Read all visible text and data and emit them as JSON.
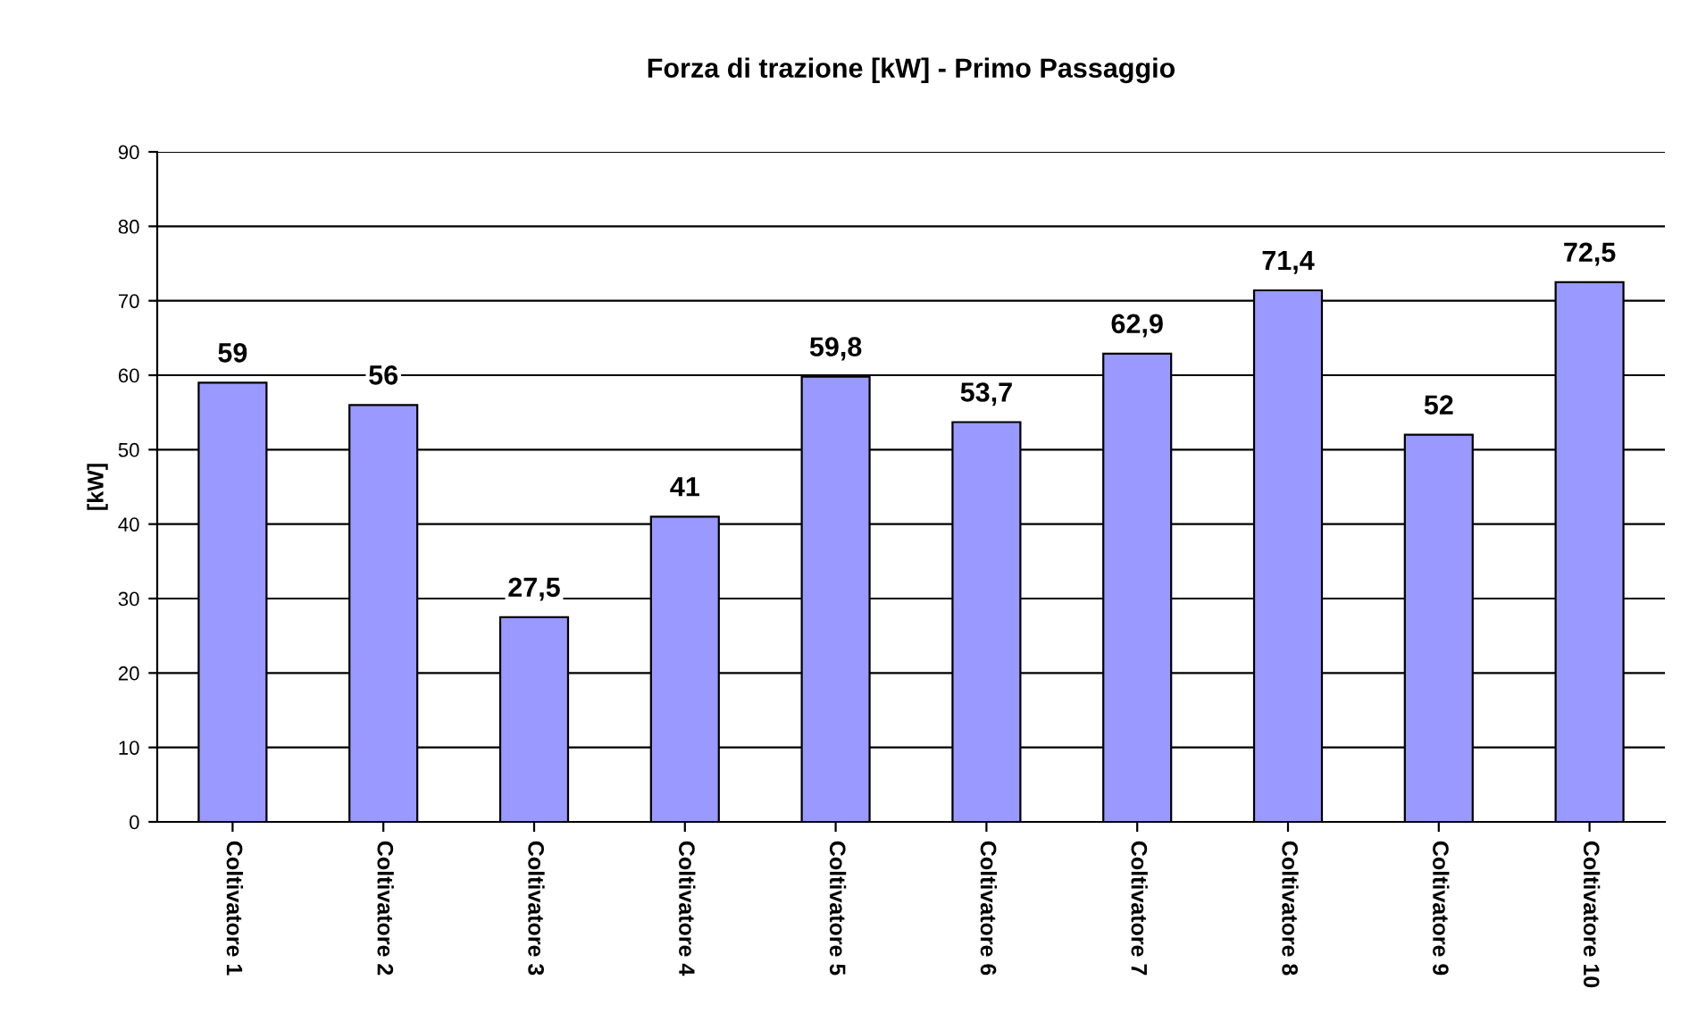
{
  "chart_data": {
    "type": "bar",
    "title": "Forza di trazione [kW] - Primo Passaggio",
    "ylabel": "[kW]",
    "categories": [
      "Coltivatore 1",
      "Coltivatore 2",
      "Coltivatore 3",
      "Coltivatore 4",
      "Coltivatore 5",
      "Coltivatore 6",
      "Coltivatore 7",
      "Coltivatore 8",
      "Coltivatore 9",
      "Coltivatore 10"
    ],
    "values": [
      59,
      56,
      27.5,
      41,
      59.8,
      53.7,
      62.9,
      71.4,
      52,
      72.5
    ],
    "value_labels": [
      "59",
      "56",
      "27,5",
      "41",
      "59,8",
      "53,7",
      "62,9",
      "71,4",
      "52",
      "72,5"
    ],
    "color": "#9999ff",
    "ylim": [
      0,
      90
    ],
    "yticks": [
      0,
      10,
      20,
      30,
      40,
      50,
      60,
      70,
      80,
      90
    ],
    "grid": "y",
    "legend": false
  }
}
